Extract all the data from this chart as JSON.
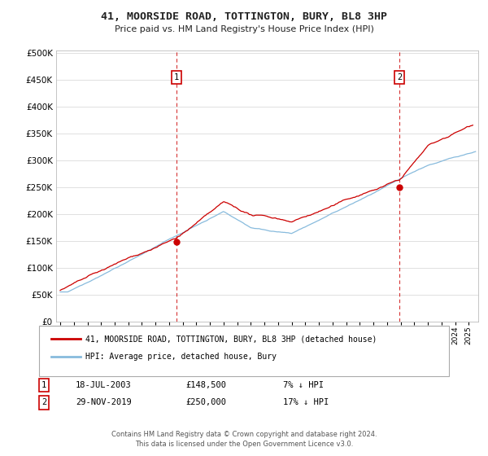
{
  "title": "41, MOORSIDE ROAD, TOTTINGTON, BURY, BL8 3HP",
  "subtitle": "Price paid vs. HM Land Registry's House Price Index (HPI)",
  "ylim": [
    0,
    500000
  ],
  "xlim_start": 1994.7,
  "xlim_end": 2025.7,
  "legend_label_red": "41, MOORSIDE ROAD, TOTTINGTON, BURY, BL8 3HP (detached house)",
  "legend_label_blue": "HPI: Average price, detached house, Bury",
  "transaction1_date": "18-JUL-2003",
  "transaction1_price": "£148,500",
  "transaction1_hpi": "7% ↓ HPI",
  "transaction1_year": 2003.54,
  "transaction1_value": 148500,
  "transaction2_date": "29-NOV-2019",
  "transaction2_price": "£250,000",
  "transaction2_hpi": "17% ↓ HPI",
  "transaction2_year": 2019.92,
  "transaction2_value": 250000,
  "footer": "Contains HM Land Registry data © Crown copyright and database right 2024.\nThis data is licensed under the Open Government Licence v3.0.",
  "red_color": "#cc0000",
  "blue_color": "#88bbdd",
  "vline_color": "#cc0000",
  "background_color": "#ffffff",
  "grid_color": "#e0e0e0"
}
